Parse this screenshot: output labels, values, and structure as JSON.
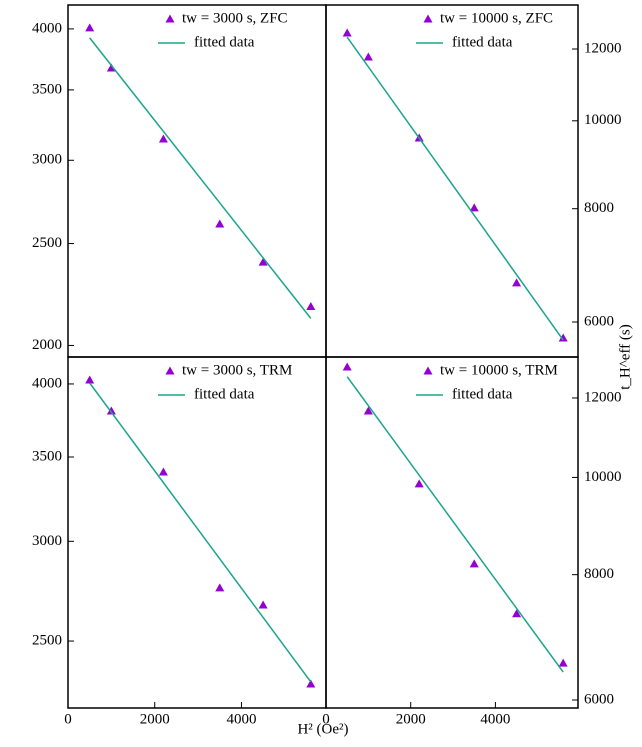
{
  "chart_data": [
    {
      "type": "scatter",
      "axis_side": "left",
      "ylog": true,
      "xlim": [
        0,
        5950
      ],
      "ylim": [
        1950,
        4215
      ],
      "yticks": [
        2000,
        2500,
        3000,
        3500,
        4000
      ],
      "series": [
        {
          "name": "tw = 3000 s, ZFC",
          "color": "#9400d3",
          "x": [
            500,
            1000,
            2200,
            3500,
            4500,
            5600
          ],
          "values": [
            4009,
            3672,
            3143,
            2609,
            2400,
            2178
          ]
        },
        {
          "name": "fitted data",
          "color": "#1aa58a",
          "x": [
            500,
            5600
          ],
          "values": [
            3922,
            2122
          ]
        }
      ]
    },
    {
      "type": "scatter",
      "axis_side": "right",
      "ylog": true,
      "ylabel": "t_H^eff (s)",
      "xlim": [
        0,
        5950
      ],
      "ylim": [
        5490,
        13418
      ],
      "yticks": [
        6000,
        8000,
        10000,
        12000
      ],
      "series": [
        {
          "name": "tw = 10000 s, ZFC",
          "color": "#9400d3",
          "x": [
            500,
            1000,
            2200,
            3500,
            4500,
            5600
          ],
          "values": [
            12497,
            11759,
            9574,
            8016,
            6627,
            5761
          ]
        },
        {
          "name": "fitted data",
          "color": "#1aa58a",
          "x": [
            500,
            5600
          ],
          "values": [
            12365,
            5732
          ]
        }
      ]
    },
    {
      "type": "scatter",
      "axis_side": "left",
      "ylog": true,
      "xlabel": "H² (Oe²)",
      "xlim": [
        0,
        5950
      ],
      "ylim": [
        2212,
        4202
      ],
      "yticks": [
        2500,
        3000,
        3500,
        4000
      ],
      "xticks": [
        0,
        2000,
        4000
      ],
      "series": [
        {
          "name": "tw = 3000 s, TRM",
          "color": "#9400d3",
          "x": [
            500,
            1000,
            2200,
            3500,
            4500,
            5600
          ],
          "values": [
            4029,
            3807,
            3405,
            2755,
            2670,
            2311
          ]
        },
        {
          "name": "fitted data",
          "color": "#1aa58a",
          "x": [
            500,
            5600
          ],
          "values": [
            4007,
            2320
          ]
        }
      ]
    },
    {
      "type": "scatter",
      "axis_side": "right",
      "ylog": true,
      "xlim": [
        0,
        5950
      ],
      "ylim": [
        5891,
        13183
      ],
      "yticks": [
        6000,
        8000,
        10000,
        12000
      ],
      "xticks": [
        0,
        2000,
        4000
      ],
      "series": [
        {
          "name": "tw = 10000 s, TRM",
          "color": "#9400d3",
          "x": [
            500,
            1000,
            2200,
            3500,
            4500,
            5600
          ],
          "values": [
            12884,
            11647,
            9852,
            8200,
            7313,
            6530
          ]
        },
        {
          "name": "fitted data",
          "color": "#1aa58a",
          "x": [
            500,
            5600
          ],
          "values": [
            12600,
            6397
          ]
        }
      ]
    }
  ]
}
